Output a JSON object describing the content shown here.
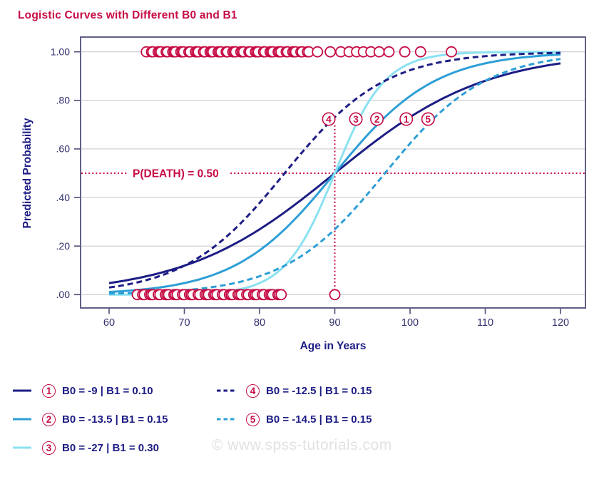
{
  "watermark": "© www.spss-tutorials.com",
  "colors": {
    "crimson": "#C60D45",
    "navy": "#1D1D85",
    "blue": "#2E9FD6",
    "cyan": "#8BE1F1",
    "frame": "#4E4E79",
    "grid": "#CBCBD3",
    "tick_text": "#30306E",
    "watermark_gray": "#E2E2E2"
  },
  "chart_data": {
    "type": "line",
    "title": "Logistic Curves with Different B0 and B1",
    "xlabel": "Age in Years",
    "ylabel": "Predicted Probability",
    "model": "logistic: p = 1 / (1 + exp(-(B0 + B1*age)))",
    "xlim": [
      56.2,
      123.3
    ],
    "ylim": [
      -0.056,
      1.062
    ],
    "xticks": [
      60,
      70,
      80,
      90,
      100,
      110,
      120
    ],
    "yticks": [
      {
        "v": 0.0,
        "label": ".00"
      },
      {
        "v": 0.2,
        "label": ".20"
      },
      {
        "v": 0.4,
        "label": ".40"
      },
      {
        "v": 0.6,
        "label": ".60"
      },
      {
        "v": 0.8,
        "label": ".80"
      },
      {
        "v": 1.0,
        "label": "1.00"
      }
    ],
    "grid": "horizontal-only",
    "curve_age_range": [
      60,
      120
    ],
    "series": [
      {
        "num": 1,
        "b0": -9,
        "b1": 0.1,
        "color": "#1D1D85",
        "dash": "solid",
        "label": "B0 = -9 | B1 = 0.10",
        "tag_age": 99.5
      },
      {
        "num": 2,
        "b0": -13.5,
        "b1": 0.15,
        "color": "#2E9FD6",
        "dash": "solid",
        "label": "B0 = -13.5 | B1 = 0.15",
        "tag_age": 95.6
      },
      {
        "num": 3,
        "b0": -27,
        "b1": 0.3,
        "color": "#8BE1F1",
        "dash": "solid",
        "label": "B0 = -27 | B1 = 0.30",
        "tag_age": 92.8
      },
      {
        "num": 4,
        "b0": -12.5,
        "b1": 0.15,
        "color": "#1D1D85",
        "dash": "dashed",
        "label": "B0 = -12.5 | B1 = 0.15",
        "tag_age": 89.2
      },
      {
        "num": 5,
        "b0": -14.5,
        "b1": 0.15,
        "color": "#2E9FD6",
        "dash": "dashed",
        "label": "B0 = -14.5 | B1 = 0.15",
        "tag_age": 102.4
      }
    ],
    "tag_p": 0.723,
    "crosshair": {
      "age": 90,
      "p": 0.5,
      "label": "P(DEATH) = 0.50"
    },
    "scatter": {
      "marker": "open-circle",
      "deaths": {
        "p": 1.0,
        "cluster_range": [
          65.2,
          86.5
        ],
        "cluster_count": 57,
        "outlier_ages": [
          87.7,
          89.4,
          90.8,
          91.9,
          92.9,
          93.8,
          94.8,
          95.9,
          97.2,
          99.3,
          101.4,
          105.5
        ]
      },
      "survivors": {
        "p": 0.0,
        "cluster_range": [
          64.0,
          83.1
        ],
        "cluster_count": 48,
        "outlier_ages": [
          90
        ]
      }
    },
    "legend_position": "below",
    "legend_columns": [
      [
        1,
        2,
        3
      ],
      [
        4,
        5
      ]
    ]
  }
}
